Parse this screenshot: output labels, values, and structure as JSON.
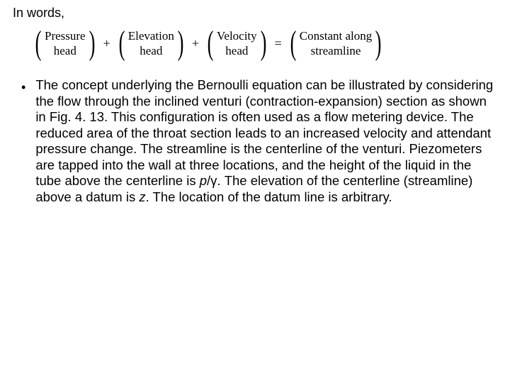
{
  "intro": "In words,",
  "equation": {
    "terms": [
      {
        "line1": "Pressure",
        "line2": "head"
      },
      {
        "line1": "Elevation",
        "line2": "head"
      },
      {
        "line1": "Velocity",
        "line2": "head"
      },
      {
        "line1": "Constant along",
        "line2": "streamline"
      }
    ],
    "ops": {
      "plus": "+",
      "equals": "="
    },
    "paren_left": "(",
    "paren_right": ")"
  },
  "bullet_glyph": "•",
  "paragraph": {
    "p1": "The concept underlying the Bernoulli equation can be illustrated by considering the flow through the inclined venturi (contraction-expansion) section as shown in Fig. 4. 13. This configuration is often used as a flow metering device. The reduced area of the throat section leads to an increased velocity and attendant pressure change. The streamline is the centerline of the venturi. Piezometers are tapped into the wall at three locations, and the height of the liquid in the tube above the centerline is ",
    "var1": "p",
    "slash": "/γ. ",
    "p2": "The elevation of the centerline (streamline) above a datum is ",
    "var2": "z",
    "p3": ". The location of the datum line is arbitrary."
  }
}
